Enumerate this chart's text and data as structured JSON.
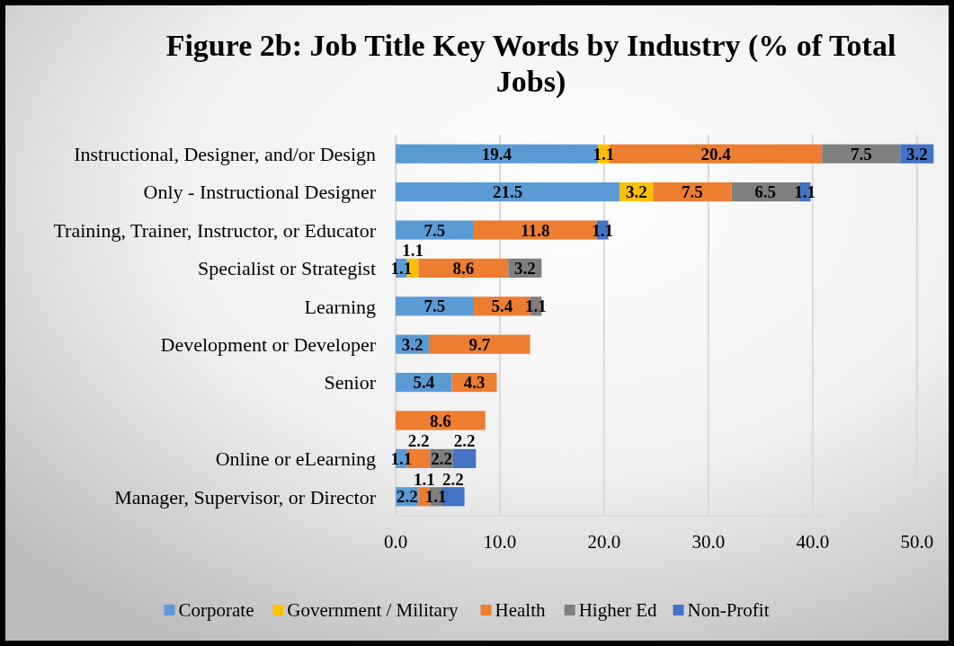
{
  "chart_data": {
    "type": "bar",
    "orientation": "horizontal",
    "stacked": true,
    "title": "Figure 2b: Job Title Key Words by Industry (% of Total Jobs)",
    "categories": [
      "Instructional, Designer, and/or Design",
      "Only - Instructional Designer",
      "Training, Trainer, Instructor, or Educator",
      "Specialist or Strategist",
      "Learning",
      "Development or Developer",
      "Senior",
      null,
      "Online or eLearning",
      "Manager, Supervisor, or Director"
    ],
    "series": [
      {
        "name": "Corporate",
        "color": "#5b9bd5",
        "values": [
          19.4,
          21.5,
          7.5,
          1.1,
          7.5,
          3.2,
          5.4,
          null,
          1.1,
          2.2
        ]
      },
      {
        "name": "Government / Military",
        "color": "#ffc000",
        "values": [
          1.1,
          3.2,
          null,
          1.1,
          null,
          null,
          null,
          null,
          null,
          null
        ]
      },
      {
        "name": "Health",
        "color": "#ed7d31",
        "values": [
          20.4,
          7.5,
          11.8,
          8.6,
          5.4,
          9.7,
          4.3,
          8.6,
          2.2,
          1.1
        ]
      },
      {
        "name": "Higher Ed",
        "color": "#7f7f7f",
        "values": [
          7.5,
          6.5,
          null,
          3.2,
          1.1,
          null,
          null,
          null,
          2.2,
          1.1
        ]
      },
      {
        "name": "Non-Profit",
        "color": "#4472c4",
        "values": [
          3.2,
          1.1,
          1.1,
          null,
          null,
          null,
          null,
          null,
          2.2,
          2.2
        ]
      }
    ],
    "xlim": [
      0,
      52
    ],
    "xticks": [
      {
        "value": 0,
        "label": "0.0"
      },
      {
        "value": 10,
        "label": "10.0"
      },
      {
        "value": 20,
        "label": "20.0"
      },
      {
        "value": 30,
        "label": "30.0"
      },
      {
        "value": 40,
        "label": "40.0"
      },
      {
        "value": 50,
        "label": "50.0"
      }
    ],
    "grid": "x",
    "legend": "bottom",
    "data_labels": true
  }
}
